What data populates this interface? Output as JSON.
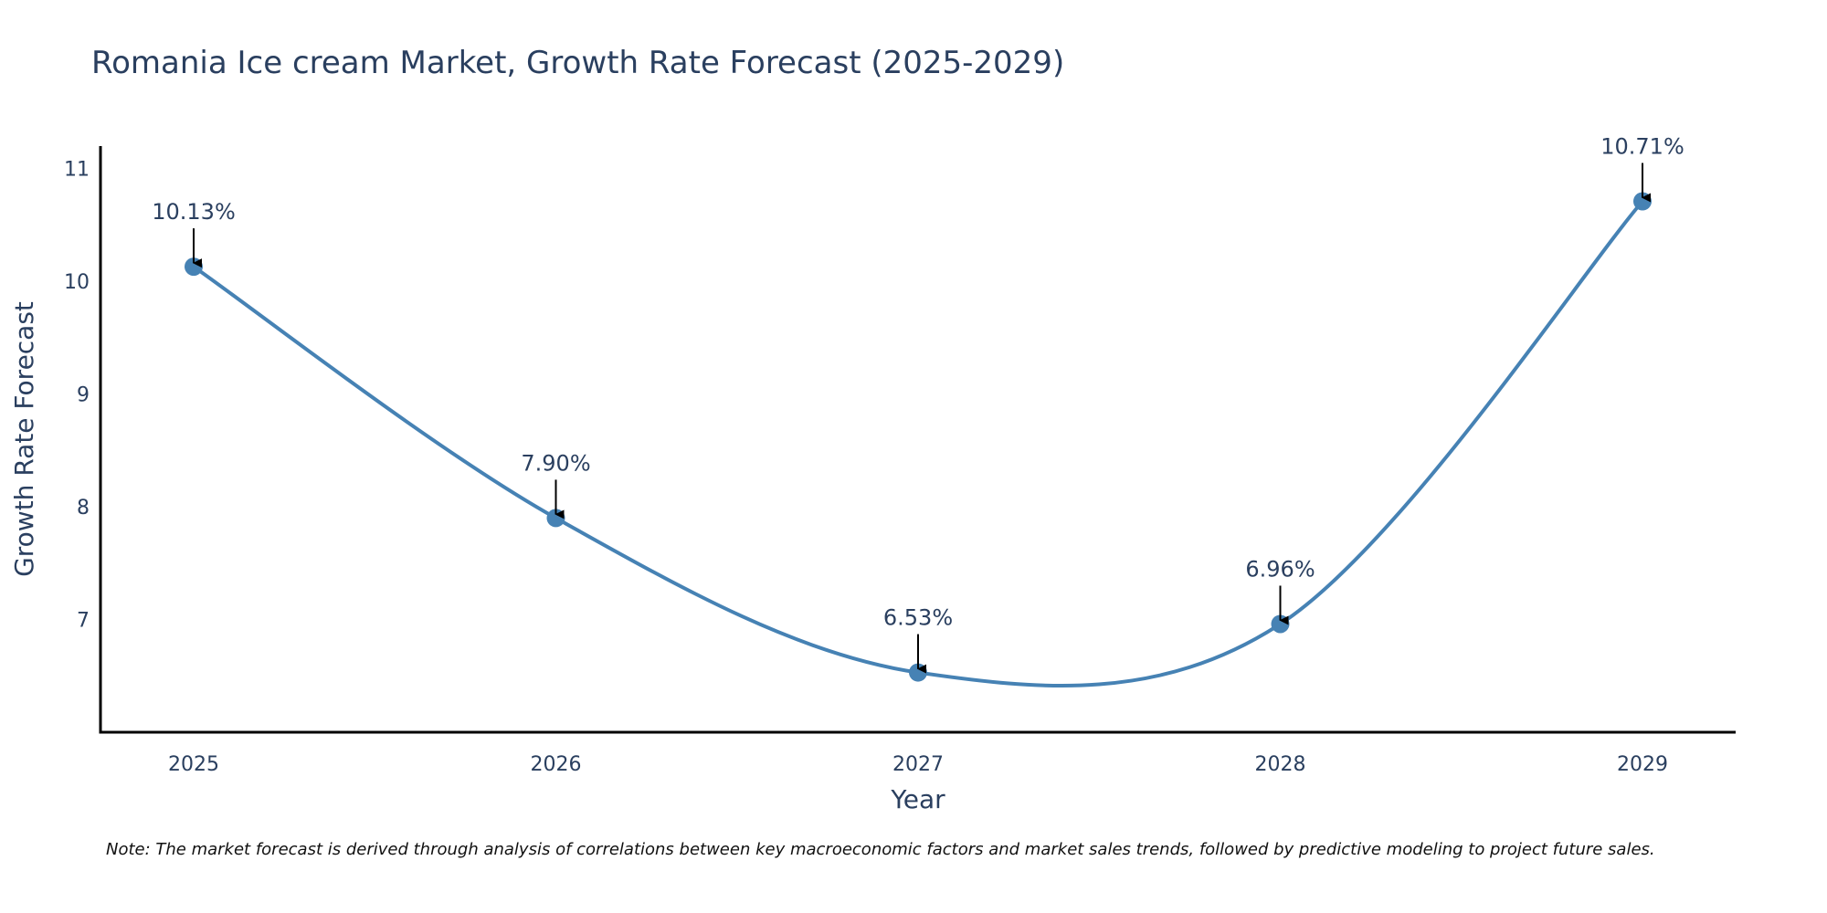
{
  "chart_data": {
    "type": "line",
    "title": "Romania Ice cream Market, Growth Rate Forecast (2025-2029)",
    "xlabel": "Year",
    "ylabel": "Growth Rate Forecast",
    "categories": [
      "2025",
      "2026",
      "2027",
      "2028",
      "2029"
    ],
    "series": [
      {
        "name": "Growth Rate Forecast",
        "values": [
          10.13,
          7.9,
          6.53,
          6.96,
          10.71
        ],
        "labels": [
          "10.13%",
          "7.90%",
          "6.53%",
          "6.96%",
          "10.71%"
        ],
        "color": "#4682b4"
      }
    ],
    "yticks": [
      7,
      8,
      9,
      10,
      11
    ],
    "ylim": [
      6.0,
      11.2
    ],
    "grid": false,
    "line_shape": "spline",
    "annotations": "arrow pointing to each data point with its percentage label"
  },
  "note": "Note: The market forecast is derived through analysis of correlations between key macroeconomic factors and market sales trends, followed by predictive modeling to project future sales.",
  "colors": {
    "line": "#4682b4",
    "marker": "#4682b4",
    "arrow": "#000000",
    "text": "#2a3f5f",
    "axis": "#000000"
  }
}
